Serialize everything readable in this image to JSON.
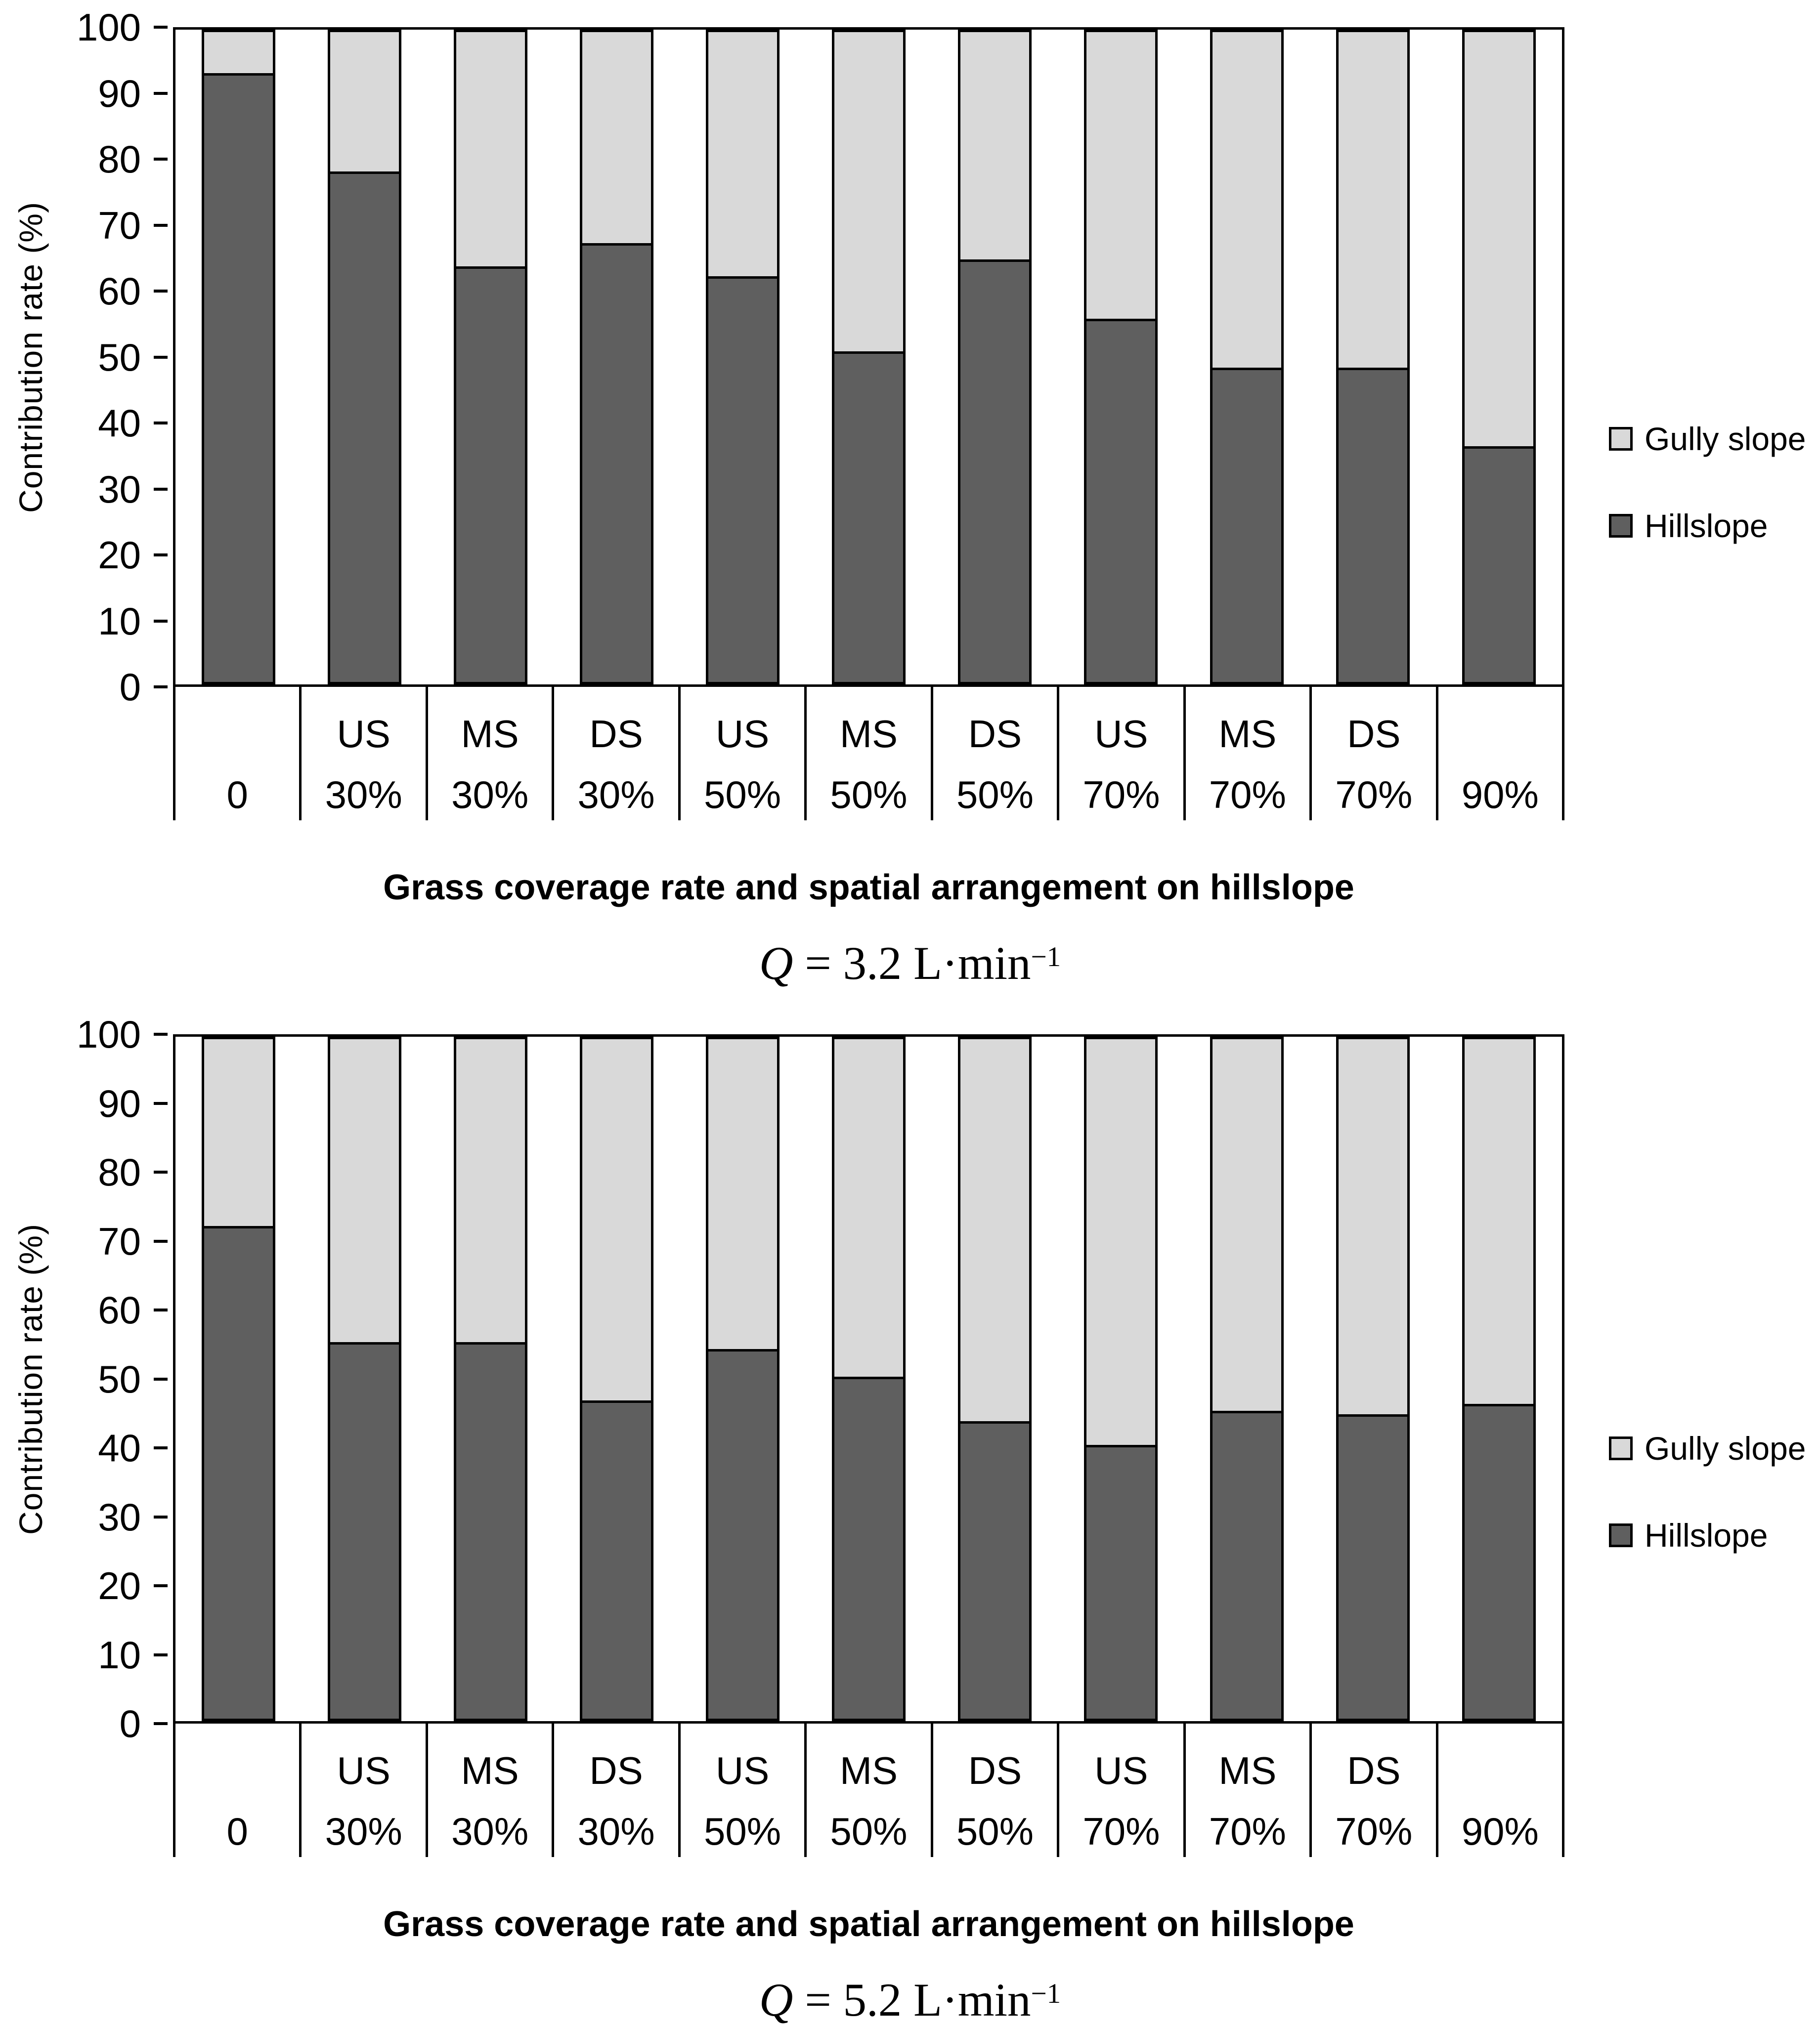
{
  "chart_data": [
    {
      "type": "bar",
      "stacked": true,
      "stack_total": 100,
      "caption": "Q = 3.2 L·min⁻¹",
      "caption_parts": {
        "q": "Q",
        "body": " = 3.2 L·min",
        "exp": "−1"
      },
      "ylabel": "Contribution rate (%)",
      "xlabel": "Grass coverage rate and spatial arrangement on hillslope",
      "ylim": [
        0,
        100
      ],
      "yticks": [
        0,
        10,
        20,
        30,
        40,
        50,
        60,
        70,
        80,
        90,
        100
      ],
      "grid": false,
      "legend_position": "right",
      "categories_row1": [
        "",
        "US",
        "MS",
        "DS",
        "US",
        "MS",
        "DS",
        "US",
        "MS",
        "DS",
        ""
      ],
      "categories_row2": [
        "0",
        "30%",
        "30%",
        "30%",
        "50%",
        "50%",
        "50%",
        "70%",
        "70%",
        "70%",
        "90%"
      ],
      "series": [
        {
          "name": "Hillslope",
          "color": "#5f5f5f",
          "values": [
            93,
            78,
            63.5,
            67,
            62,
            50.5,
            64.5,
            55.5,
            48,
            48,
            36
          ]
        },
        {
          "name": "Gully slope",
          "color": "#d9d9d9",
          "values": [
            7,
            22,
            36.5,
            33,
            38,
            49.5,
            35.5,
            44.5,
            52,
            52,
            64
          ]
        }
      ],
      "legend": [
        {
          "label": "Gully slope",
          "color": "#d9d9d9"
        },
        {
          "label": "Hillslope",
          "color": "#5f5f5f"
        }
      ]
    },
    {
      "type": "bar",
      "stacked": true,
      "stack_total": 100,
      "caption": "Q = 5.2 L·min⁻¹",
      "caption_parts": {
        "q": "Q",
        "body": " = 5.2 L·min",
        "exp": "−1"
      },
      "ylabel": "Contribution rate (%)",
      "xlabel": "Grass coverage rate and spatial arrangement on hillslope",
      "ylim": [
        0,
        100
      ],
      "yticks": [
        0,
        10,
        20,
        30,
        40,
        50,
        60,
        70,
        80,
        90,
        100
      ],
      "grid": false,
      "legend_position": "right",
      "categories_row1": [
        "",
        "US",
        "MS",
        "DS",
        "US",
        "MS",
        "DS",
        "US",
        "MS",
        "DS",
        ""
      ],
      "categories_row2": [
        "0",
        "30%",
        "30%",
        "30%",
        "50%",
        "50%",
        "50%",
        "70%",
        "70%",
        "70%",
        "90%"
      ],
      "series": [
        {
          "name": "Hillslope",
          "color": "#5f5f5f",
          "values": [
            72,
            55,
            55,
            46.5,
            54,
            50,
            43.5,
            40,
            45,
            44.5,
            46
          ]
        },
        {
          "name": "Gully slope",
          "color": "#d9d9d9",
          "values": [
            28,
            45,
            45,
            53.5,
            46,
            50,
            56.5,
            60,
            55,
            55.5,
            54
          ]
        }
      ],
      "legend": [
        {
          "label": "Gully slope",
          "color": "#d9d9d9"
        },
        {
          "label": "Hillslope",
          "color": "#5f5f5f"
        }
      ]
    }
  ],
  "colors": {
    "hillslope": "#5f5f5f",
    "gully_slope": "#d9d9d9",
    "outline": "#000000"
  }
}
